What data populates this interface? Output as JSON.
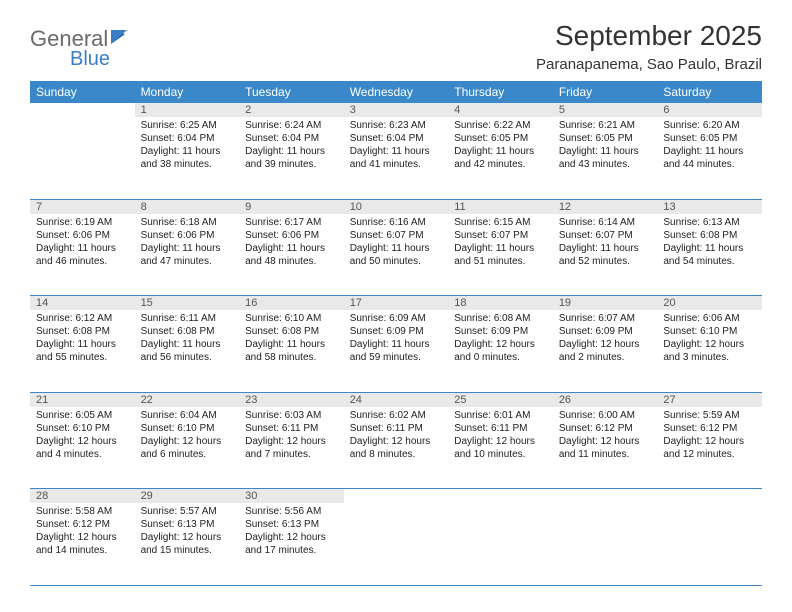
{
  "logo": {
    "text1": "General",
    "text2": "Blue"
  },
  "title": "September 2025",
  "location": "Paranapanema, Sao Paulo, Brazil",
  "colors": {
    "header_bg": "#3a88c9",
    "num_row_bg": "#e9e9e9",
    "border": "#3a88c9",
    "text": "#222222",
    "logo_gray": "#6b6b6b",
    "logo_blue": "#3a7fc5"
  },
  "day_headers": [
    "Sunday",
    "Monday",
    "Tuesday",
    "Wednesday",
    "Thursday",
    "Friday",
    "Saturday"
  ],
  "weeks": [
    [
      null,
      {
        "n": "1",
        "sr": "6:25 AM",
        "ss": "6:04 PM",
        "dl1": "11 hours",
        "dl2": "and 38 minutes."
      },
      {
        "n": "2",
        "sr": "6:24 AM",
        "ss": "6:04 PM",
        "dl1": "11 hours",
        "dl2": "and 39 minutes."
      },
      {
        "n": "3",
        "sr": "6:23 AM",
        "ss": "6:04 PM",
        "dl1": "11 hours",
        "dl2": "and 41 minutes."
      },
      {
        "n": "4",
        "sr": "6:22 AM",
        "ss": "6:05 PM",
        "dl1": "11 hours",
        "dl2": "and 42 minutes."
      },
      {
        "n": "5",
        "sr": "6:21 AM",
        "ss": "6:05 PM",
        "dl1": "11 hours",
        "dl2": "and 43 minutes."
      },
      {
        "n": "6",
        "sr": "6:20 AM",
        "ss": "6:05 PM",
        "dl1": "11 hours",
        "dl2": "and 44 minutes."
      }
    ],
    [
      {
        "n": "7",
        "sr": "6:19 AM",
        "ss": "6:06 PM",
        "dl1": "11 hours",
        "dl2": "and 46 minutes."
      },
      {
        "n": "8",
        "sr": "6:18 AM",
        "ss": "6:06 PM",
        "dl1": "11 hours",
        "dl2": "and 47 minutes."
      },
      {
        "n": "9",
        "sr": "6:17 AM",
        "ss": "6:06 PM",
        "dl1": "11 hours",
        "dl2": "and 48 minutes."
      },
      {
        "n": "10",
        "sr": "6:16 AM",
        "ss": "6:07 PM",
        "dl1": "11 hours",
        "dl2": "and 50 minutes."
      },
      {
        "n": "11",
        "sr": "6:15 AM",
        "ss": "6:07 PM",
        "dl1": "11 hours",
        "dl2": "and 51 minutes."
      },
      {
        "n": "12",
        "sr": "6:14 AM",
        "ss": "6:07 PM",
        "dl1": "11 hours",
        "dl2": "and 52 minutes."
      },
      {
        "n": "13",
        "sr": "6:13 AM",
        "ss": "6:08 PM",
        "dl1": "11 hours",
        "dl2": "and 54 minutes."
      }
    ],
    [
      {
        "n": "14",
        "sr": "6:12 AM",
        "ss": "6:08 PM",
        "dl1": "11 hours",
        "dl2": "and 55 minutes."
      },
      {
        "n": "15",
        "sr": "6:11 AM",
        "ss": "6:08 PM",
        "dl1": "11 hours",
        "dl2": "and 56 minutes."
      },
      {
        "n": "16",
        "sr": "6:10 AM",
        "ss": "6:08 PM",
        "dl1": "11 hours",
        "dl2": "and 58 minutes."
      },
      {
        "n": "17",
        "sr": "6:09 AM",
        "ss": "6:09 PM",
        "dl1": "11 hours",
        "dl2": "and 59 minutes."
      },
      {
        "n": "18",
        "sr": "6:08 AM",
        "ss": "6:09 PM",
        "dl1": "12 hours",
        "dl2": "and 0 minutes."
      },
      {
        "n": "19",
        "sr": "6:07 AM",
        "ss": "6:09 PM",
        "dl1": "12 hours",
        "dl2": "and 2 minutes."
      },
      {
        "n": "20",
        "sr": "6:06 AM",
        "ss": "6:10 PM",
        "dl1": "12 hours",
        "dl2": "and 3 minutes."
      }
    ],
    [
      {
        "n": "21",
        "sr": "6:05 AM",
        "ss": "6:10 PM",
        "dl1": "12 hours",
        "dl2": "and 4 minutes."
      },
      {
        "n": "22",
        "sr": "6:04 AM",
        "ss": "6:10 PM",
        "dl1": "12 hours",
        "dl2": "and 6 minutes."
      },
      {
        "n": "23",
        "sr": "6:03 AM",
        "ss": "6:11 PM",
        "dl1": "12 hours",
        "dl2": "and 7 minutes."
      },
      {
        "n": "24",
        "sr": "6:02 AM",
        "ss": "6:11 PM",
        "dl1": "12 hours",
        "dl2": "and 8 minutes."
      },
      {
        "n": "25",
        "sr": "6:01 AM",
        "ss": "6:11 PM",
        "dl1": "12 hours",
        "dl2": "and 10 minutes."
      },
      {
        "n": "26",
        "sr": "6:00 AM",
        "ss": "6:12 PM",
        "dl1": "12 hours",
        "dl2": "and 11 minutes."
      },
      {
        "n": "27",
        "sr": "5:59 AM",
        "ss": "6:12 PM",
        "dl1": "12 hours",
        "dl2": "and 12 minutes."
      }
    ],
    [
      {
        "n": "28",
        "sr": "5:58 AM",
        "ss": "6:12 PM",
        "dl1": "12 hours",
        "dl2": "and 14 minutes."
      },
      {
        "n": "29",
        "sr": "5:57 AM",
        "ss": "6:13 PM",
        "dl1": "12 hours",
        "dl2": "and 15 minutes."
      },
      {
        "n": "30",
        "sr": "5:56 AM",
        "ss": "6:13 PM",
        "dl1": "12 hours",
        "dl2": "and 17 minutes."
      },
      null,
      null,
      null,
      null
    ]
  ],
  "labels": {
    "sunrise": "Sunrise:",
    "sunset": "Sunset:",
    "daylight": "Daylight:"
  }
}
